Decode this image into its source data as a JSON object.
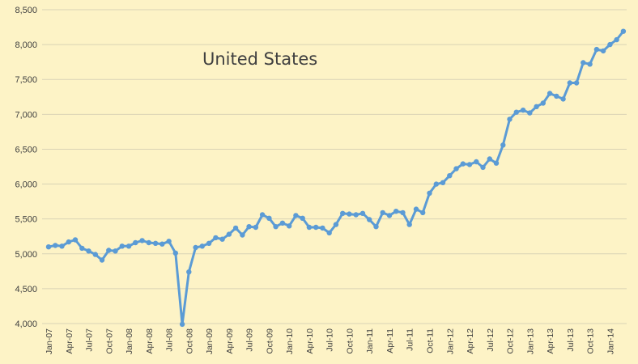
{
  "chart_data": {
    "type": "line",
    "title": "United States",
    "xlabel": "",
    "ylabel": "",
    "ylim": [
      4000,
      8500
    ],
    "y_ticks": [
      "4,000",
      "4,500",
      "5,000",
      "5,500",
      "6,000",
      "6,500",
      "7,000",
      "7,500",
      "8,000",
      "8,500"
    ],
    "x_tick_labels": [
      "Jan-07",
      "Apr-07",
      "Jul-07",
      "Oct-07",
      "Jan-08",
      "Apr-08",
      "Jul-08",
      "Oct-08",
      "Jan-09",
      "Apr-09",
      "Jul-09",
      "Oct-09",
      "Jan-10",
      "Apr-10",
      "Jul-10",
      "Oct-10",
      "Jan-11",
      "Apr-11",
      "Jul-11",
      "Oct-11",
      "Jan-12",
      "Apr-12",
      "Jul-12",
      "Oct-12",
      "Jan-13",
      "Apr-13",
      "Jul-13",
      "Oct-13",
      "Jan-14"
    ],
    "grid": true,
    "legend": "none",
    "line_color": "#5B9BD5",
    "x": [
      "Jan-07",
      "Feb-07",
      "Mar-07",
      "Apr-07",
      "May-07",
      "Jun-07",
      "Jul-07",
      "Aug-07",
      "Sep-07",
      "Oct-07",
      "Nov-07",
      "Dec-07",
      "Jan-08",
      "Feb-08",
      "Mar-08",
      "Apr-08",
      "May-08",
      "Jun-08",
      "Jul-08",
      "Aug-08",
      "Sep-08",
      "Oct-08",
      "Nov-08",
      "Dec-08",
      "Jan-09",
      "Feb-09",
      "Mar-09",
      "Apr-09",
      "May-09",
      "Jun-09",
      "Jul-09",
      "Aug-09",
      "Sep-09",
      "Oct-09",
      "Nov-09",
      "Dec-09",
      "Jan-10",
      "Feb-10",
      "Mar-10",
      "Apr-10",
      "May-10",
      "Jun-10",
      "Jul-10",
      "Aug-10",
      "Sep-10",
      "Oct-10",
      "Nov-10",
      "Dec-10",
      "Jan-11",
      "Feb-11",
      "Mar-11",
      "Apr-11",
      "May-11",
      "Jun-11",
      "Jul-11",
      "Aug-11",
      "Sep-11",
      "Oct-11",
      "Nov-11",
      "Dec-11",
      "Jan-12",
      "Feb-12",
      "Mar-12",
      "Apr-12",
      "May-12",
      "Jun-12",
      "Jul-12",
      "Aug-12",
      "Sep-12",
      "Oct-12",
      "Nov-12",
      "Dec-12",
      "Jan-13",
      "Feb-13",
      "Mar-13",
      "Apr-13",
      "May-13",
      "Jun-13",
      "Jul-13",
      "Aug-13",
      "Sep-13",
      "Oct-13",
      "Nov-13",
      "Dec-13",
      "Jan-14",
      "Feb-14",
      "Mar-14"
    ],
    "values": [
      5100,
      5120,
      5110,
      5170,
      5200,
      5080,
      5040,
      4990,
      4910,
      5050,
      5040,
      5110,
      5110,
      5160,
      5190,
      5160,
      5150,
      5140,
      5180,
      5010,
      3990,
      4740,
      5090,
      5110,
      5150,
      5230,
      5210,
      5280,
      5370,
      5270,
      5390,
      5380,
      5560,
      5510,
      5390,
      5440,
      5400,
      5550,
      5510,
      5380,
      5380,
      5370,
      5300,
      5420,
      5580,
      5570,
      5560,
      5580,
      5490,
      5390,
      5590,
      5550,
      5610,
      5590,
      5420,
      5640,
      5590,
      5870,
      6000,
      6020,
      6120,
      6220,
      6290,
      6280,
      6320,
      6240,
      6360,
      6300,
      6560,
      6930,
      7030,
      7060,
      7020,
      7110,
      7160,
      7300,
      7260,
      7220,
      7450,
      7450,
      7740,
      7720,
      7930,
      7910,
      8000,
      8070,
      8190
    ]
  }
}
